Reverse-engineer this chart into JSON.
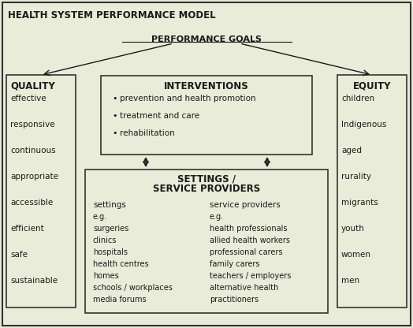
{
  "title": "HEALTH SYSTEM PERFORMANCE MODEL",
  "bg_color": "#e8ecd8",
  "box_fill": "#e8ecd8",
  "box_edge": "#333333",
  "text_color": "#1a1a1a",
  "perf_goals_label": "PERFORMANCE GOALS",
  "quality_title": "QUALITY",
  "quality_items": [
    "effective",
    "responsive",
    "continuous",
    "appropriate",
    "accessible",
    "efficient",
    "safe",
    "sustainable"
  ],
  "equity_title": "EQUITY",
  "equity_items": [
    "children",
    "Indigenous",
    "aged",
    "rurality",
    "migrants",
    "youth",
    "women",
    "men"
  ],
  "interventions_title": "INTERVENTIONS",
  "interventions_bullets": [
    "prevention and health promotion",
    "treatment and care",
    "rehabilitation"
  ],
  "settings_title_line1": "SETTINGS /",
  "settings_title_line2": "SERVICE PROVIDERS",
  "settings_col_header": "settings",
  "settings_col_items": [
    "e.g.",
    "surgeries",
    "clinics",
    "hospitals",
    "health centres",
    "homes",
    "schools / workplaces",
    "media forums"
  ],
  "providers_col_header": "service providers",
  "providers_col_items": [
    "e.g.",
    "health professionals",
    "allied health workers",
    "professional carers",
    "family carers",
    "teachers / employers",
    "alternative health",
    "practitioners"
  ]
}
